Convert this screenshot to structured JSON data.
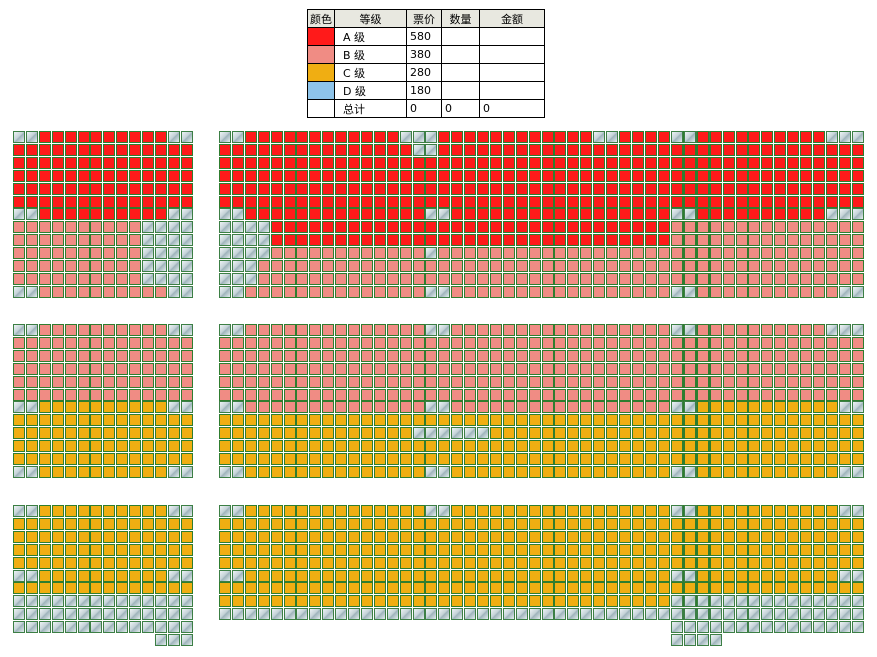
{
  "legend": {
    "headers": [
      "颜色",
      "等级",
      "票价",
      "数量",
      "金额"
    ],
    "rows": [
      {
        "color": "#ff1a1a",
        "grade": "A 级",
        "price": "580",
        "qty": "",
        "amount": ""
      },
      {
        "color": "#f08c84",
        "grade": "B 级",
        "price": "380",
        "qty": "",
        "amount": ""
      },
      {
        "color": "#f0ae12",
        "grade": "C 级",
        "price": "280",
        "qty": "",
        "amount": ""
      },
      {
        "color": "#8ec4ea",
        "grade": "D 级",
        "price": "180",
        "qty": "",
        "amount": ""
      }
    ],
    "total": {
      "label": "总计",
      "price": "0",
      "qty": "0",
      "amount": "0"
    }
  },
  "seat_map": {
    "colors": {
      "A": "#ff1a1a",
      "B": "#f08c84",
      "C": "#f0ae12",
      "D": "#8ec4ea"
    },
    "sections": [
      {
        "name": "upper-left",
        "rows": [
          "XXAAAAAAAAAAXX",
          "AAAAAAAAAAAAAA",
          "AAAAAAAAAAAAAA",
          "AAAAAAAAAAAAAA",
          "AAAAAAAAAAAAAA",
          "AAAAAAAAAAAAAA",
          "XXAAAAAAAAAAXX",
          "BBBBBBBBBBXXXX",
          "BBBBBBBBBBXXXX",
          "BBBBBBBBBBXXXX",
          "BBBBBBBBBBXXXX",
          "BBBBBBBBBBXXXX",
          "XXBBBBBBBBBBXX"
        ]
      },
      {
        "name": "upper-center",
        "rows": [
          "XXAAAAAAAAAAAAXXXAAAAAAAAAAAAXXAAAAAAXX",
          "AAAAAAAAAAAAAAAXXAAAAAAAAAAAAAAAAAAAAAA",
          "AAAAAAAAAAAAAAAAAAAAAAAAAAAAAAAAAAAAAAA",
          "AAAAAAAAAAAAAAAAAAAAAAAAAAAAAAAAAAAAAAA",
          "AAAAAAAAAAAAAAAAAAAAAAAAAAAAAAAAAAAAAAA",
          "AAAAAAAAAAAAAAAAAAAAAAAAAAAAAAAAAAAAAAA",
          "XXAAAAAAAAAAAAAAXXAAAAAAAAAAAAAAAAAAAXX",
          "XXXXAAAAAAAAAAAAAAAAAAAAAAAAAAAAAAAAAAA",
          "XXXXAAAAAAAAAAAAAAAAAAAAAAAAAAAAAAAAAAA",
          "XXXXBBBBBBBBBBBBXBBBBBBBBBBBBBBBBBBBBBB",
          "XXXBBBBBBBBBBBBBBBBBBBBBBBBBBBBBBBBBBBB",
          "XXXBBBBBBBBBBBBBBBBBBBBBBBBBBBBBBBBBBBB",
          "XXBBBBBBBBBBBBBBXXBBBBBBBBBBBBBBBBBBBXX"
        ]
      },
      {
        "name": "upper-right",
        "rows": [
          "XXAAAAAAAAAAXXX",
          "AAAAAAAAAAAAAAA",
          "AAAAAAAAAAAAAAA",
          "AAAAAAAAAAAAAAA",
          "AAAAAAAAAAAAAAA",
          "AAAAAAAAAAAAAAA",
          "XXAAAAAAAAAAXXX",
          "BBBBBBBBBBBBBBB",
          "BBBBBBBBBBBBBBB",
          "BBBBBBBBBBBBBBB",
          "BBBBBBBBBBBBBBB",
          "BBBBBBBBBBBBBBB",
          "XXBBBBBBBBBBBXX"
        ]
      },
      {
        "name": "middle-left",
        "rows": [
          "XXBBBBBBBBBBXX",
          "BBBBBBBBBBBBBB",
          "BBBBBBBBBBBBBB",
          "BBBBBBBBBBBBBB",
          "BBBBBBBBBBBBBB",
          "BBBBBBBBBBBBBB",
          "XXCCCCCCCCCCXX",
          "CCCCCCCCCCCCCC",
          "CCCCCCCCCCCCCC",
          "CCCCCCCCCCCCCC",
          "CCCCCCCCCCCCCC",
          "XXCCCCCCCCCCXX"
        ]
      },
      {
        "name": "middle-center",
        "rows": [
          "XXBBBBBBBBBBBBBBXXBBBBBBBBBBBBBBBBBBBXX",
          "BBBBBBBBBBBBBBBBBBBBBBBBBBBBBBBBBBBBBBB",
          "BBBBBBBBBBBBBBBBBBBBBBBBBBBBBBBBBBBBBBB",
          "BBBBBBBBBBBBBBBBBBBBBBBBBBBBBBBBBBBBBBB",
          "BBBBBBBBBBBBBBBBBBBBBBBBBBBBBBBBBBBBBBB",
          "BBBBBBBBBBBBBBBBBBBBBBBBBBBBBBBBBBBBBBB",
          "XXBBBBBBBBBBBBBBXXBBBBBBBBBBBBBBBBBBBXX",
          "CCCCCCCCCCCCCCCCCCCCCCCCCCCCCCCCCCCCCCC",
          "CCCCCCCCCCCCCCCXXXXXXCCCCCCCCCCCCCCCCCC",
          "CCCCCCCCCCCCCCCCCCCCCCCCCCCCCCCCCCCCCCC",
          "CCCCCCCCCCCCCCCCCCCCCCCCCCCCCCCCCCCCCCC",
          "XXCCCCCCCCCCCCCCXXCCCCCCCCCCCCCCCCCCCXX"
        ]
      },
      {
        "name": "middle-right",
        "rows": [
          "XXBBBBBBBBBBXXX",
          "BBBBBBBBBBBBBBB",
          "BBBBBBBBBBBBBBB",
          "BBBBBBBBBBBBBBB",
          "BBBBBBBBBBBBBBB",
          "BBBBBBBBBBBBBBB",
          "XXCCCCCCCCCCCXX",
          "CCCCCCCCCCCCCCC",
          "CCCCCCCCCCCCCCC",
          "CCCCCCCCCCCCCCC",
          "CCCCCCCCCCCCCCC",
          "XXCCCCCCCCCCCXX"
        ]
      },
      {
        "name": "lower-left",
        "rows": [
          "XXCCCCCCCCCCXX",
          "CCCCCCCCCCCCCC",
          "CCCCCCCCCCCCCC",
          "CCCCCCCCCCCCCC",
          "CCCCCCCCCCCCCC",
          "XXCCCCCCCCCCXX",
          "CCCCCCCCCCCCCC",
          "XXXXXXXXXXXXXX",
          "XXXXXXXXXXXXXX",
          "XXXXXXXXXXXXXX",
          "...........XXX"
        ]
      },
      {
        "name": "lower-center",
        "rows": [
          "XXCCCCCCCCCCCCCCXXCCCCCCCCCCCCCCCCCCCXX",
          "CCCCCCCCCCCCCCCCCCCCCCCCCCCCCCCCCCCCCCC",
          "CCCCCCCCCCCCCCCCCCCCCCCCCCCCCCCCCCCCCCC",
          "CCCCCCCCCCCCCCCCCCCCCCCCCCCCCCCCCCCCCCC",
          "CCCCCCCCCCCCCCCCCCCCCCCCCCCCCCCCCCCCCCC",
          "XXCCCCCCCCCCCCCCCCCCCCCCCCCCCCCCCCCCCXX",
          "CCCCCCCCCCCCCCCCCCCCCCCCCCCCCCCCCCCCCCC",
          "CCCCCCCCCCCCCCCCCCCCCCCCCCCCCCCCCCCCCCC",
          "XXXXXXXXXXXXXXXXXXXXXXXXXXXXXXXXXXXXXXX"
        ]
      },
      {
        "name": "lower-right",
        "rows": [
          "XXCCCCCCCCCCCXX",
          "CCCCCCCCCCCCCCC",
          "CCCCCCCCCCCCCCC",
          "CCCCCCCCCCCCCCC",
          "CCCCCCCCCCCCCCC",
          "XXCCCCCCCCCCCXX",
          "CCCCCCCCCCCCCCC",
          "XXXXXXXXXXXXXXX",
          "XXXXXXXXXXXXXXX",
          "XXXXXXXXXXXXXXX",
          "XXXX..........."
        ]
      }
    ]
  }
}
